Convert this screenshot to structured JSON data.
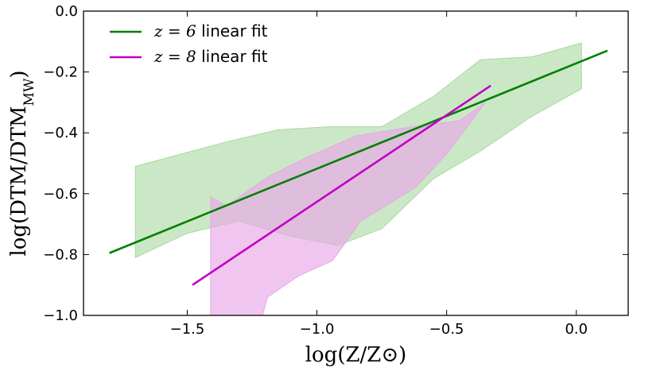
{
  "chart_data": {
    "type": "line",
    "xlabel": "log(Z/Z⊙)",
    "ylabel": "log(DTM/DTM_MW)",
    "ylabel_main": "log(DTM/DTM",
    "ylabel_sub": "MW",
    "ylabel_close": ")",
    "xlim": [
      -1.9,
      0.2
    ],
    "ylim": [
      -1.0,
      0.0
    ],
    "x_ticks": [
      -1.5,
      -1.0,
      -0.5,
      0.0
    ],
    "x_tick_labels": [
      "−1.5",
      "−1.0",
      "−0.5",
      "0.0"
    ],
    "y_ticks": [
      0.0,
      -0.2,
      -0.4,
      -0.6,
      -0.8,
      -1.0
    ],
    "y_tick_labels": [
      "0.0",
      "−0.2",
      "−0.4",
      "−0.6",
      "−0.8",
      "−1.0"
    ],
    "legend_position": "top-left",
    "series": [
      {
        "name": "z=6 linear fit",
        "legend_math": "z = 6",
        "legend_rest": " linear fit",
        "color": "#008000",
        "fill_color": "#a8d8a0",
        "line": {
          "x": [
            -1.8,
            0.12
          ],
          "y": [
            -0.795,
            -0.13
          ]
        },
        "band_upper": {
          "x": [
            -1.7,
            -1.35,
            -1.15,
            -0.95,
            -0.75,
            -0.55,
            -0.37,
            -0.17,
            0.02
          ],
          "y": [
            -0.51,
            -0.43,
            -0.39,
            -0.38,
            -0.38,
            -0.28,
            -0.16,
            -0.15,
            -0.105
          ]
        },
        "band_lower": {
          "x": [
            -1.7,
            -1.5,
            -1.3,
            -1.1,
            -0.92,
            -0.75,
            -0.55,
            -0.37,
            -0.17,
            0.02
          ],
          "y": [
            -0.81,
            -0.73,
            -0.69,
            -0.74,
            -0.77,
            -0.715,
            -0.55,
            -0.46,
            -0.345,
            -0.255
          ]
        }
      },
      {
        "name": "z=8 linear fit",
        "legend_math": "z = 8",
        "legend_rest": " linear fit",
        "color": "#c000c0",
        "fill_color": "#e8a8e8",
        "line": {
          "x": [
            -1.48,
            -0.33
          ],
          "y": [
            -0.9,
            -0.245
          ]
        },
        "band_upper": {
          "x": [
            -1.41,
            -1.35,
            -1.18,
            -1.05,
            -0.85,
            -0.63,
            -0.45,
            -0.35
          ],
          "y": [
            -0.61,
            -0.64,
            -0.54,
            -0.485,
            -0.41,
            -0.38,
            -0.36,
            -0.3
          ]
        },
        "band_lower": {
          "x": [
            -1.41,
            -1.21,
            -1.19,
            -1.07,
            -0.94,
            -0.83,
            -0.62,
            -0.5,
            -0.35
          ],
          "y": [
            -1.0,
            -1.0,
            -0.94,
            -0.87,
            -0.82,
            -0.69,
            -0.58,
            -0.47,
            -0.3
          ]
        }
      }
    ]
  }
}
